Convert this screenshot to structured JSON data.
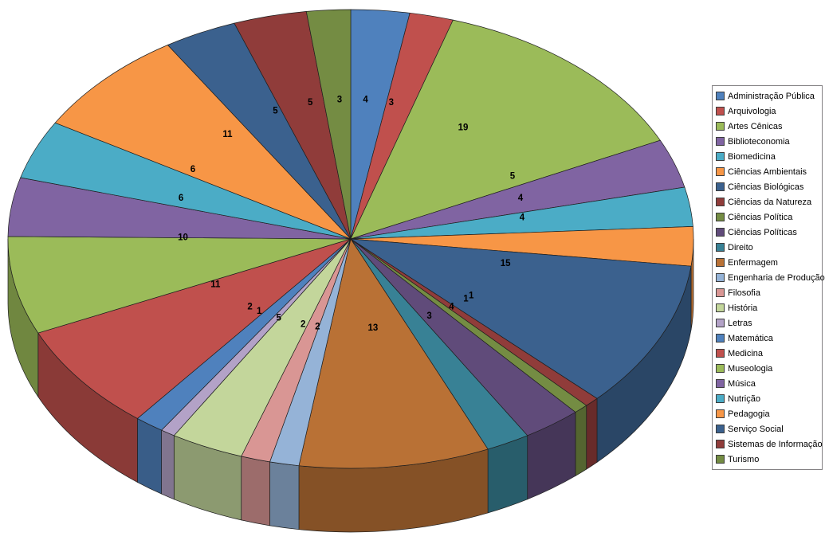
{
  "chart_data": {
    "type": "pie",
    "style": "3d",
    "title": "",
    "total": 145,
    "data_labels": "value",
    "legend_position": "right",
    "background": "#FFFFFF",
    "series": [
      {
        "label": "Administração Pública",
        "value": 4,
        "color": "#4F81BD"
      },
      {
        "label": "Arquivologia",
        "value": 3,
        "color": "#C0504D"
      },
      {
        "label": "Artes Cênicas",
        "value": 19,
        "color": "#9BBB59"
      },
      {
        "label": "Biblioteconomia",
        "value": 5,
        "color": "#8064A2"
      },
      {
        "label": "Biomedicina",
        "value": 4,
        "color": "#4BACC6"
      },
      {
        "label": "Ciências Ambientais",
        "value": 4,
        "color": "#F79646"
      },
      {
        "label": "Ciências Biológicas",
        "value": 15,
        "color": "#3B618E"
      },
      {
        "label": "Ciências da Natureza",
        "value": 1,
        "color": "#903C3A"
      },
      {
        "label": "Ciências Política",
        "value": 1,
        "color": "#748C43"
      },
      {
        "label": "Ciências Políticas",
        "value": 4,
        "color": "#604B7A"
      },
      {
        "label": "Direito",
        "value": 3,
        "color": "#388195"
      },
      {
        "label": "Enfermagem",
        "value": 13,
        "color": "#B97135"
      },
      {
        "label": "Engenharia de Produção",
        "value": 2,
        "color": "#95B3D7"
      },
      {
        "label": "Filosofia",
        "value": 2,
        "color": "#D99694"
      },
      {
        "label": "História",
        "value": 5,
        "color": "#C3D69B"
      },
      {
        "label": "Letras",
        "value": 1,
        "color": "#B3A2C7"
      },
      {
        "label": "Matemática",
        "value": 2,
        "color": "#4F81BD"
      },
      {
        "label": "Medicina",
        "value": 11,
        "color": "#C0504D"
      },
      {
        "label": "Museologia",
        "value": 10,
        "color": "#9BBB59"
      },
      {
        "label": "Música",
        "value": 6,
        "color": "#8064A2"
      },
      {
        "label": "Nutrição",
        "value": 6,
        "color": "#4BACC6"
      },
      {
        "label": "Pedagogia",
        "value": 11,
        "color": "#F79646"
      },
      {
        "label": "Serviço Social",
        "value": 5,
        "color": "#3B618E"
      },
      {
        "label": "Sistemas de Informação",
        "value": 5,
        "color": "#903C3A"
      },
      {
        "label": "Turismo",
        "value": 3,
        "color": "#748C43"
      }
    ]
  }
}
